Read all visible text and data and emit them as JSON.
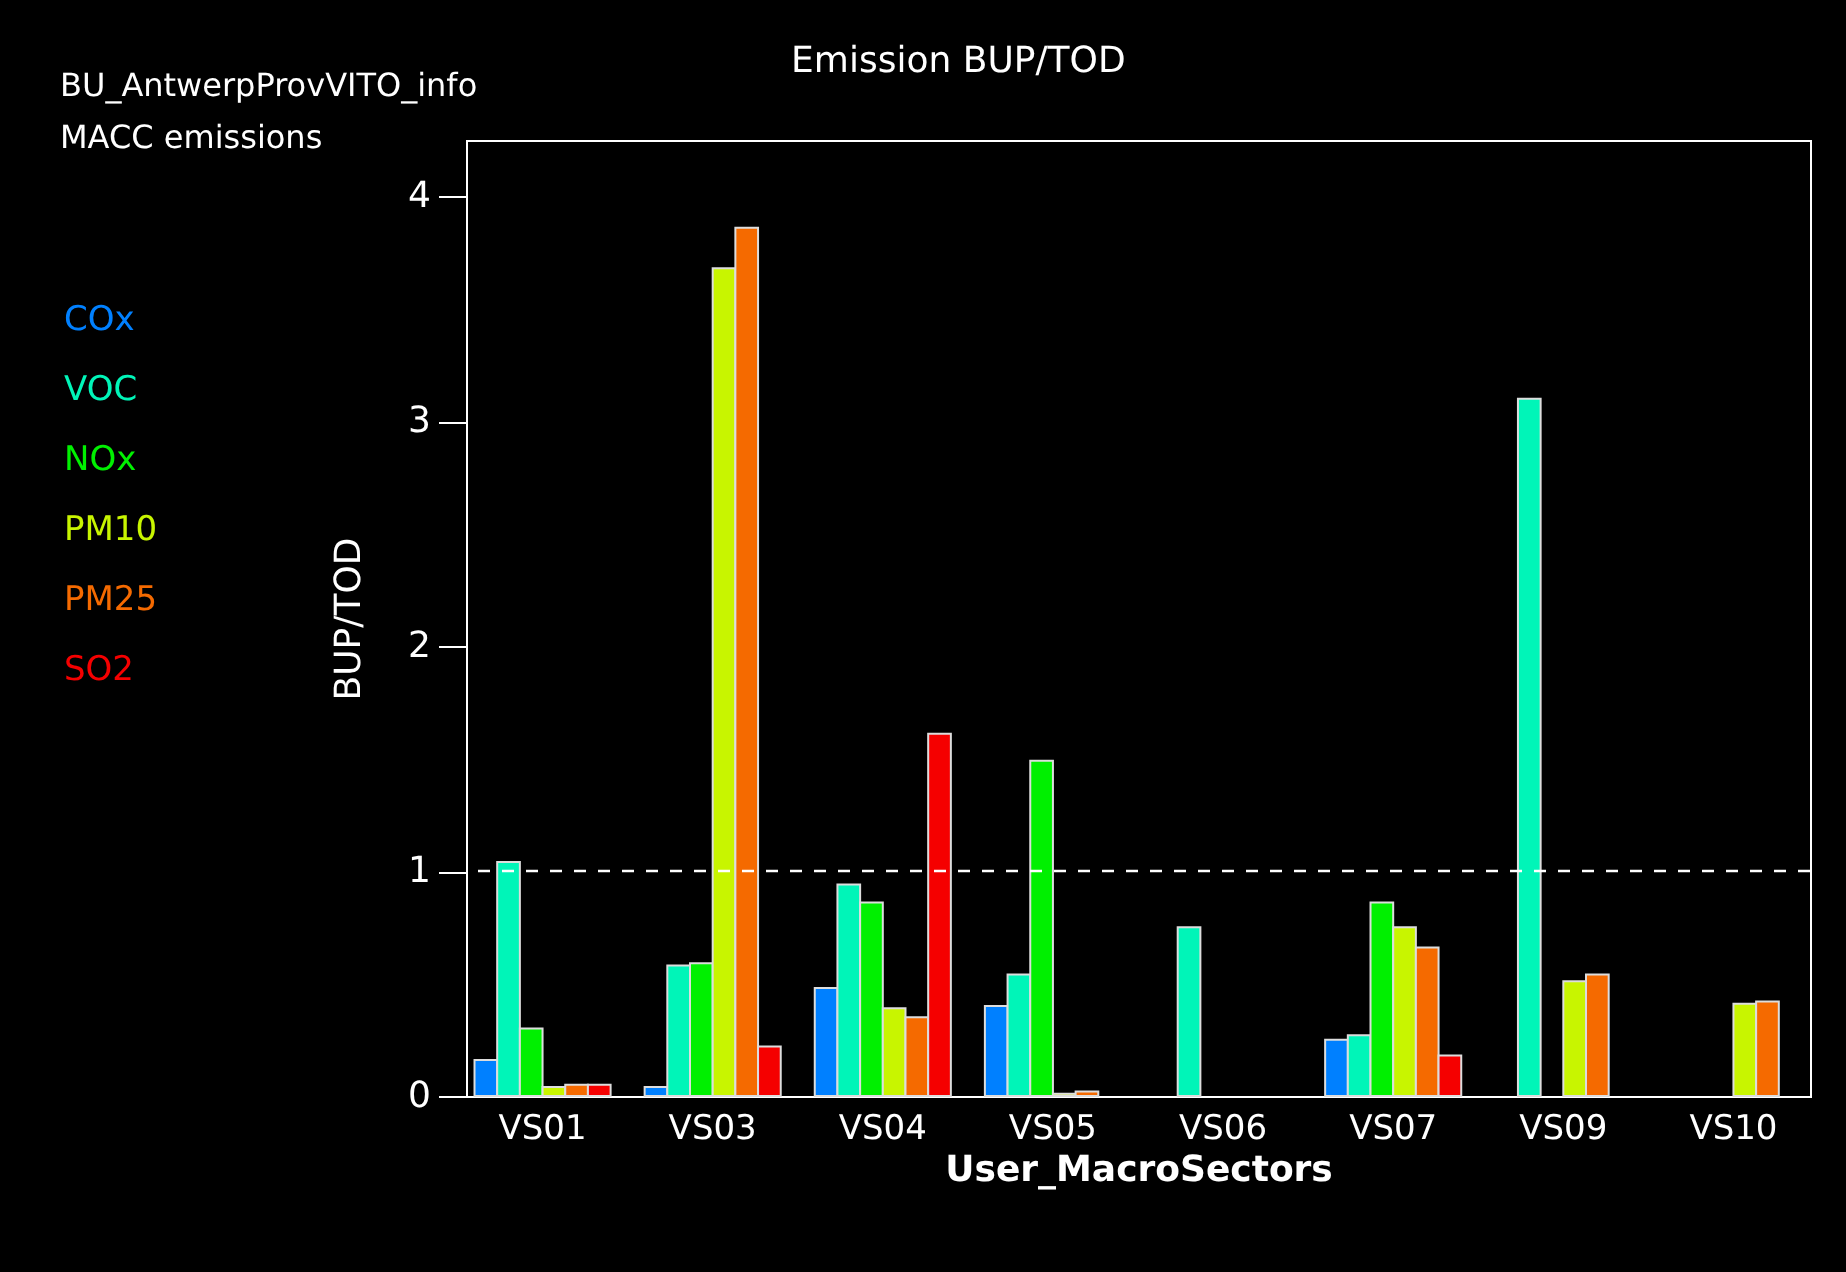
{
  "chart_data": {
    "type": "bar",
    "title": "Emission BUP/TOD",
    "annotations": [
      "BU_AntwerpProvVITO_info",
      "MACC emissions"
    ],
    "xlabel": "User_MacroSectors",
    "ylabel": "BUP/TOD",
    "categories": [
      "VS01",
      "VS03",
      "VS04",
      "VS05",
      "VS06",
      "VS07",
      "VS09",
      "VS10"
    ],
    "series": [
      {
        "name": "COx",
        "color": "#0080ff",
        "values": [
          0.16,
          0.04,
          0.48,
          0.4,
          null,
          0.25,
          null,
          null
        ]
      },
      {
        "name": "VOC",
        "color": "#00f5b8",
        "values": [
          1.04,
          0.58,
          0.94,
          0.54,
          0.75,
          0.27,
          3.1,
          null
        ]
      },
      {
        "name": "NOx",
        "color": "#00f000",
        "values": [
          0.3,
          0.59,
          0.86,
          1.49,
          null,
          0.86,
          null,
          null
        ]
      },
      {
        "name": "PM10",
        "color": "#c8f500",
        "values": [
          0.04,
          3.68,
          0.39,
          0.01,
          null,
          0.75,
          0.51,
          0.41
        ]
      },
      {
        "name": "PM25",
        "color": "#f56a00",
        "values": [
          0.05,
          3.86,
          0.35,
          0.02,
          null,
          0.66,
          0.54,
          0.42
        ]
      },
      {
        "name": "SO2",
        "color": "#f50000",
        "values": [
          0.05,
          0.22,
          1.61,
          null,
          null,
          0.18,
          null,
          null
        ]
      }
    ],
    "ylim": [
      0,
      4.25
    ],
    "yticks": [
      0,
      1,
      2,
      3,
      4
    ],
    "ref_lines": [
      {
        "axis": "y",
        "value": 1,
        "color": "#ffffff",
        "line_style": "dashed"
      }
    ],
    "grid": false,
    "legend": "left"
  }
}
